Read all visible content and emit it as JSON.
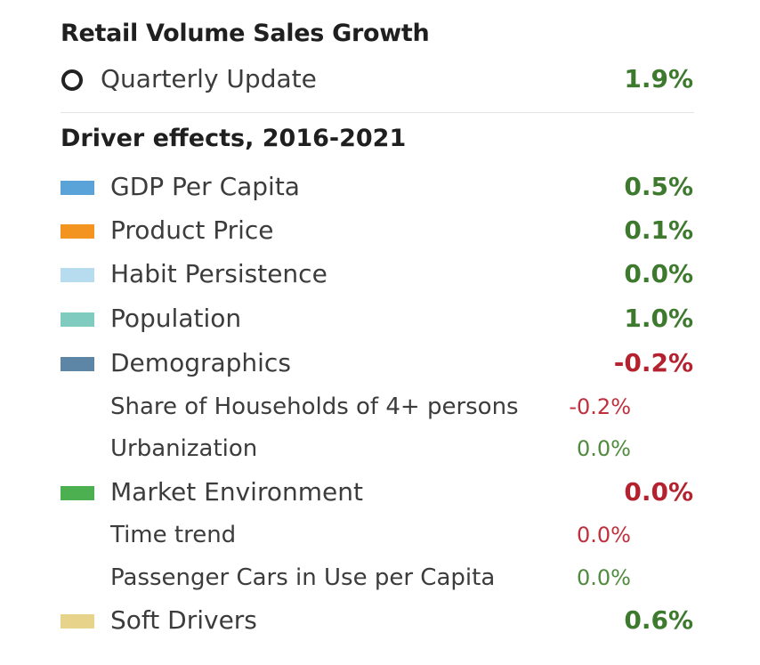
{
  "header": {
    "title": "Retail Volume Sales Growth",
    "quarterly_label": "Quarterly Update",
    "quarterly_value": "1.9%"
  },
  "drivers": {
    "title": "Driver effects, 2016-2021",
    "gdp": {
      "label": "GDP Per Capita",
      "value": "0.5%",
      "color": "#5aa3d9"
    },
    "price": {
      "label": "Product Price",
      "value": "0.1%",
      "color": "#f2941f"
    },
    "habit": {
      "label": "Habit Persistence",
      "value": "0.0%",
      "color": "#b7dcf0"
    },
    "population": {
      "label": "Population",
      "value": "1.0%",
      "color": "#7fcbbf"
    },
    "demographics": {
      "label": "Demographics",
      "value": "-0.2%",
      "color": "#5d86a6",
      "households": {
        "label": "Share of Households of 4+ persons",
        "value": "-0.2%"
      },
      "urbanization": {
        "label": "Urbanization",
        "value": "0.0%"
      }
    },
    "market": {
      "label": "Market Environment",
      "value": "0.0%",
      "color": "#4caf50",
      "time_trend": {
        "label": "Time trend",
        "value": "0.0%"
      },
      "cars": {
        "label": "Passenger Cars in Use per Capita",
        "value": "0.0%"
      }
    },
    "soft": {
      "label": "Soft Drivers",
      "value": "0.6%",
      "color": "#e8d38a"
    }
  }
}
